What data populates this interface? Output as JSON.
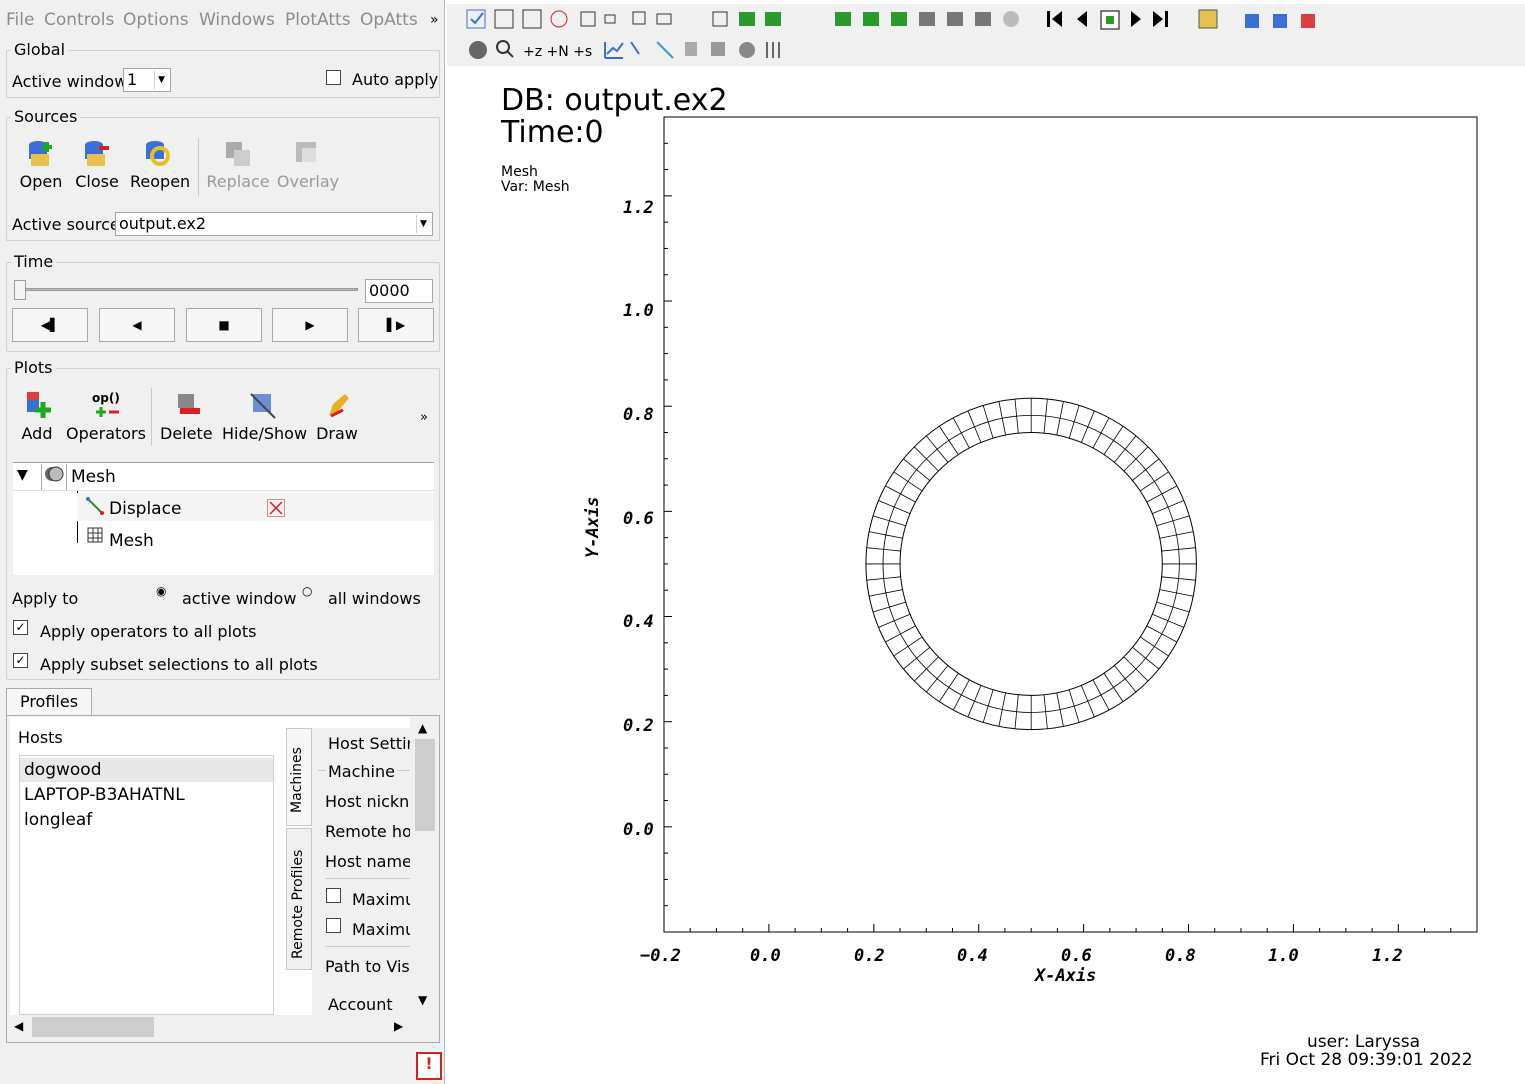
{
  "menu": [
    "File",
    "Controls",
    "Options",
    "Windows",
    "PlotAtts",
    "OpAtts",
    "»"
  ],
  "global": {
    "title": "Global",
    "active_window_label": "Active window",
    "active_window_value": "1",
    "auto_apply": "Auto apply"
  },
  "sources": {
    "title": "Sources",
    "open": "Open",
    "close": "Close",
    "reopen": "Reopen",
    "replace": "Replace",
    "overlay": "Overlay",
    "active_source_label": "Active source",
    "active_source_value": "output.ex2"
  },
  "time": {
    "title": "Time",
    "value": "0000"
  },
  "plots": {
    "title": "Plots",
    "add": "Add",
    "operators": "Operators",
    "delete": "Delete",
    "hideshow": "Hide/Show",
    "draw": "Draw",
    "more": "»",
    "tree": {
      "root": "Mesh",
      "op": "Displace",
      "child": "Mesh"
    },
    "apply_to": "Apply to",
    "active_window": "active window",
    "all_windows": "all windows",
    "apply_ops": "Apply operators to all plots",
    "apply_subset": "Apply subset selections to all plots"
  },
  "profiles": {
    "tab": "Profiles",
    "hosts_label": "Hosts",
    "hosts": [
      "dogwood",
      "LAPTOP-B3AHATNL",
      "longleaf"
    ],
    "vtab_machines": "Machines",
    "vtab_remote": "Remote Profiles",
    "host_settings": "Host Setting",
    "machine": "Machine",
    "host_nickname": "Host nicknar",
    "remote_host": "Remote host",
    "host_name_a": "Host name a",
    "maximum1": "Maximur",
    "maximum2": "Maximur",
    "path": "Path to VisIt",
    "account": "Account"
  },
  "vis": {
    "db": "DB: output.ex2",
    "time": "Time:0",
    "plot_name": "Mesh",
    "var": "Var: Mesh",
    "user": "user: Laryssa",
    "date": "Fri Oct 28 09:39:01 2022",
    "xlabel": "X-Axis",
    "ylabel": "Y-Axis",
    "xticks": [
      "−0.2",
      "0.0",
      "0.2",
      "0.4",
      "0.6",
      "0.8",
      "1.0",
      "1.2"
    ],
    "yticks": [
      "1.2",
      "1.0",
      "0.8",
      "0.6",
      "0.4",
      "0.2",
      "0.0"
    ]
  },
  "chart_data": {
    "type": "scatter",
    "title": "",
    "xlabel": "X-Axis",
    "ylabel": "Y-Axis",
    "xlim": [
      -0.2,
      1.35
    ],
    "ylim": [
      -0.2,
      1.35
    ],
    "ring": {
      "center": [
        0.5,
        0.5
      ],
      "inner_radius": 0.25,
      "outer_radius": 0.315,
      "segments": 64
    },
    "grid": false
  }
}
